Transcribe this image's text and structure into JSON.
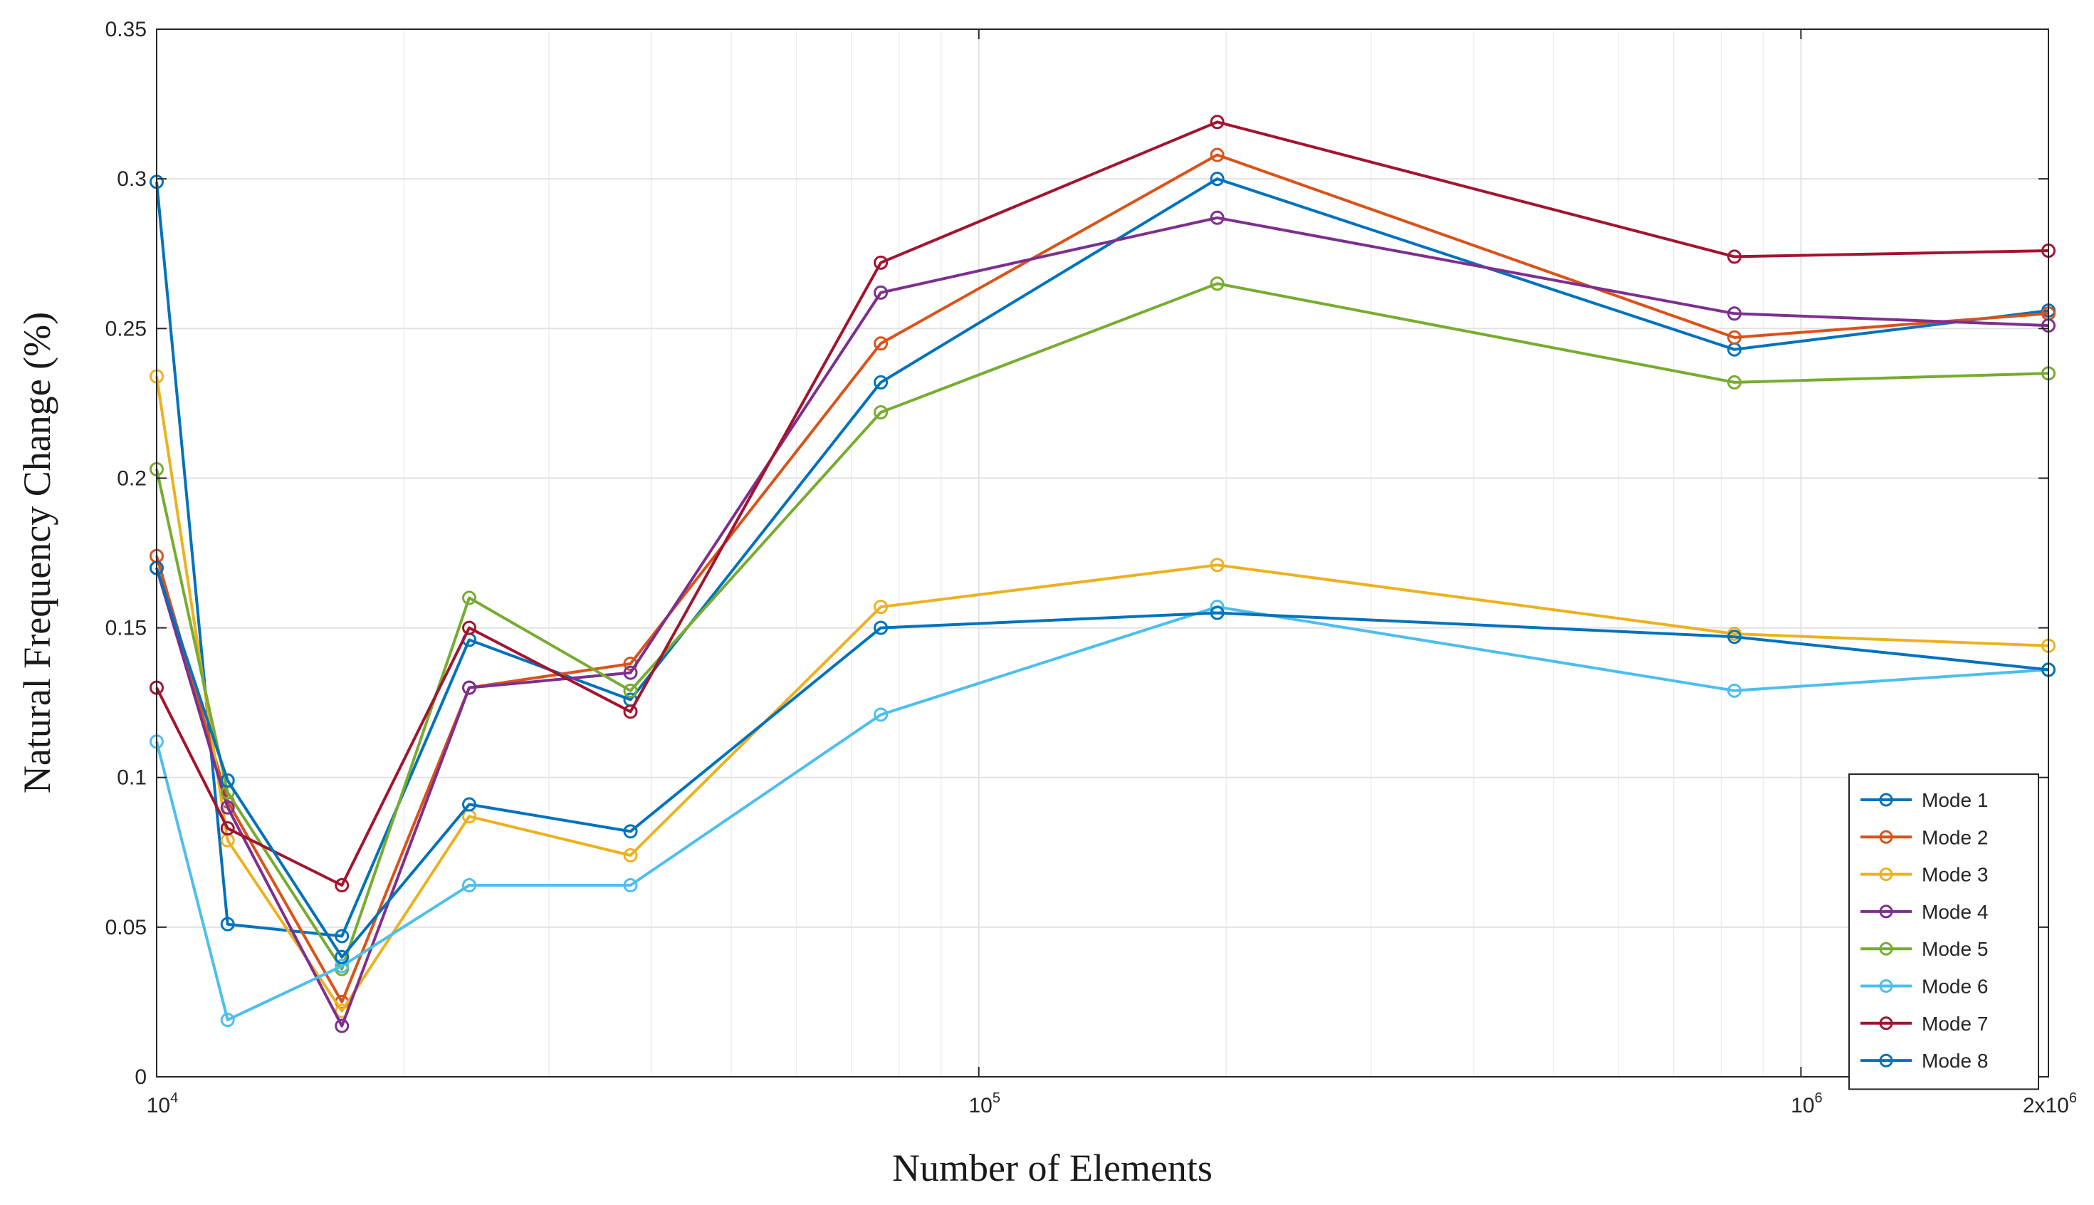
{
  "chart_data": {
    "type": "line",
    "title": "",
    "xlabel": "Number of Elements",
    "ylabel": "Natural Frequency Change (%)",
    "xscale": "log",
    "xlim": [
      10000,
      2000000
    ],
    "ylim": [
      0,
      0.35
    ],
    "grid": true,
    "legend_position": "bottom-right",
    "x_ticks": [
      {
        "value": 10000,
        "base": "10",
        "exp": "4"
      },
      {
        "value": 100000,
        "base": "10",
        "exp": "5"
      },
      {
        "value": 1000000,
        "base": "10",
        "exp": "6"
      },
      {
        "value": 2000000,
        "base": "2x10",
        "exp": "6"
      }
    ],
    "y_ticks": [
      {
        "value": 0,
        "label": "0"
      },
      {
        "value": 0.05,
        "label": "0.05"
      },
      {
        "value": 0.1,
        "label": "0.1"
      },
      {
        "value": 0.15,
        "label": "0.15"
      },
      {
        "value": 0.2,
        "label": "0.2"
      },
      {
        "value": 0.25,
        "label": "0.25"
      },
      {
        "value": 0.3,
        "label": "0.3"
      },
      {
        "value": 0.35,
        "label": "0.35"
      }
    ],
    "x": [
      10000,
      12200,
      16800,
      24000,
      37700,
      76000,
      195000,
      830000,
      2000000
    ],
    "series": [
      {
        "name": "Mode 1",
        "color": "#0072BD",
        "values": [
          0.299,
          0.051,
          0.047,
          0.146,
          0.126,
          0.232,
          0.3,
          0.243,
          0.256
        ]
      },
      {
        "name": "Mode 2",
        "color": "#D95319",
        "values": [
          0.174,
          0.092,
          0.025,
          0.13,
          0.138,
          0.245,
          0.308,
          0.247,
          0.255
        ]
      },
      {
        "name": "Mode 3",
        "color": "#EDB120",
        "values": [
          0.234,
          0.079,
          0.022,
          0.087,
          0.074,
          0.157,
          0.171,
          0.148,
          0.144
        ]
      },
      {
        "name": "Mode 4",
        "color": "#7E2F8E",
        "values": [
          0.17,
          0.09,
          0.017,
          0.13,
          0.135,
          0.262,
          0.287,
          0.255,
          0.251
        ]
      },
      {
        "name": "Mode 5",
        "color": "#77AC30",
        "values": [
          0.203,
          0.095,
          0.036,
          0.16,
          0.129,
          0.222,
          0.265,
          0.232,
          0.235
        ]
      },
      {
        "name": "Mode 6",
        "color": "#4DBEEE",
        "values": [
          0.112,
          0.019,
          0.037,
          0.064,
          0.064,
          0.121,
          0.157,
          0.129,
          0.136
        ]
      },
      {
        "name": "Mode 7",
        "color": "#A2142F",
        "values": [
          0.13,
          0.083,
          0.064,
          0.15,
          0.122,
          0.272,
          0.319,
          0.274,
          0.276
        ]
      },
      {
        "name": "Mode 8",
        "color": "#0072BD",
        "values": [
          0.17,
          0.099,
          0.04,
          0.091,
          0.082,
          0.15,
          0.155,
          0.147,
          0.136
        ]
      }
    ]
  }
}
